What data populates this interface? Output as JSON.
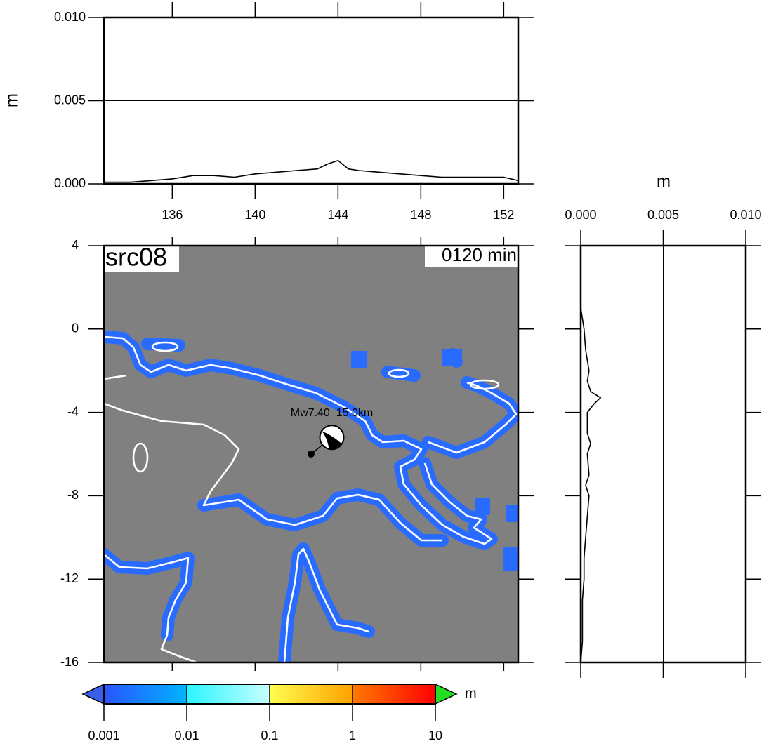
{
  "chart_data": [
    {
      "type": "line",
      "ylabel": "m",
      "x": [
        132.7,
        133,
        134,
        135,
        136,
        137,
        138,
        139,
        140,
        141,
        142,
        143,
        143.5,
        144,
        144.5,
        145,
        146,
        147,
        148,
        149,
        150,
        151,
        152,
        152.7
      ],
      "values": [
        0.0001,
        0.0001,
        0.0001,
        0.0002,
        0.0003,
        0.0005,
        0.0005,
        0.0004,
        0.0006,
        0.0007,
        0.0008,
        0.0009,
        0.0012,
        0.0014,
        0.0009,
        0.0008,
        0.0007,
        0.0006,
        0.0005,
        0.0004,
        0.0004,
        0.0004,
        0.0004,
        0.0002
      ],
      "color": "#000000",
      "xlim": [
        132.7,
        152.7
      ],
      "ylim": [
        0,
        0.01
      ],
      "xticks": [
        136,
        140,
        144,
        148,
        152
      ],
      "yticks": [
        {
          "value": 0,
          "label": "0.000"
        },
        0.005,
        {
          "value": 0.01,
          "label": "0.010"
        }
      ],
      "grid": true
    },
    {
      "type": "line",
      "orientation": "vertical",
      "xlabel": "m",
      "y": [
        4,
        1,
        0.5,
        0,
        -1,
        -2,
        -2.5,
        -3,
        -3.3,
        -3.6,
        -4,
        -5,
        -5.5,
        -6,
        -7,
        -7.5,
        -8,
        -9,
        -10,
        -11,
        -12,
        -13,
        -14,
        -15,
        -16
      ],
      "values": [
        0,
        0,
        0.0001,
        0.0002,
        0.0003,
        0.0005,
        0.0004,
        0.0006,
        0.0012,
        0.0008,
        0.0004,
        0.0004,
        0.0006,
        0.0004,
        0.0005,
        0.0003,
        0.0005,
        0.0004,
        0.0003,
        0.0002,
        0.0002,
        0.0001,
        0.0001,
        0.0001,
        0
      ],
      "color": "#000000",
      "xlim": [
        0,
        0.01
      ],
      "ylim": [
        -16,
        4
      ],
      "xticks": [
        {
          "value": 0,
          "label": "0.000"
        },
        0.005,
        {
          "value": 0.01,
          "label": "0.010"
        }
      ],
      "yticks": [
        4,
        0,
        -4,
        -8,
        -12,
        -16
      ],
      "grid": true
    },
    {
      "type": "map",
      "title": "src08",
      "annotation": "0120 min",
      "xlim": [
        132.7,
        152.7
      ],
      "ylim": [
        -16,
        4
      ],
      "xticks": [
        136,
        140,
        144,
        148,
        152
      ],
      "yticks": [
        4,
        0,
        -4,
        -8,
        -12,
        -16
      ],
      "land_color": "#808080",
      "wave_color": "#2a6bff",
      "coast_color": "#ffffff",
      "event": {
        "label": "Mw7.40_15.0km",
        "lon": 142.7,
        "lat": -6.0,
        "mech_lon": 143.7,
        "mech_lat": -5.2
      }
    },
    {
      "type": "colorbar",
      "label": "m",
      "log": true,
      "clim": [
        0.001,
        10
      ],
      "ticks": [
        0.001,
        0.01,
        0.1,
        1,
        10
      ],
      "colors": [
        [
          "#2a55ff",
          "#00b4ff"
        ],
        [
          "#2af5ff",
          "#c8ffff"
        ],
        [
          "#ffff50",
          "#ffa000"
        ],
        [
          "#ff7a00",
          "#ff0000"
        ]
      ],
      "under_color": "#3a5ee8",
      "over_color": "#22dd22"
    }
  ]
}
